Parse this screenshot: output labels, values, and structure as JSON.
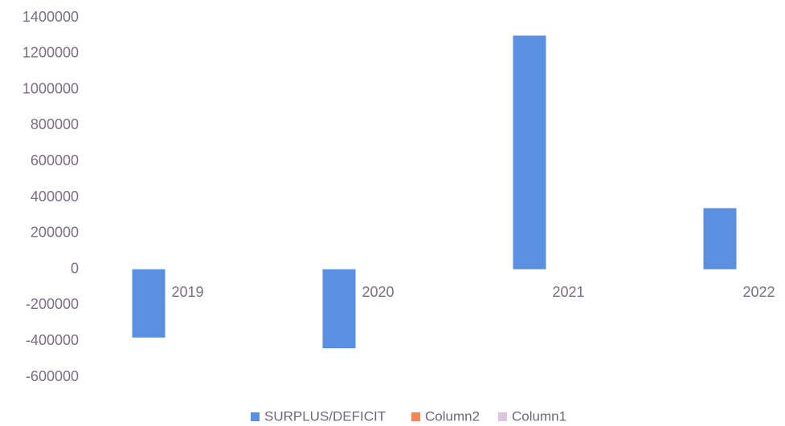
{
  "chart_data": {
    "type": "bar",
    "categories": [
      "2019",
      "2020",
      "2021",
      "2022"
    ],
    "series": [
      {
        "name": "SURPLUS/DEFICIT",
        "color": "#5b8fe0",
        "values": [
          -380000,
          -440000,
          1300000,
          340000
        ]
      },
      {
        "name": "Column2",
        "color": "#f0885a",
        "values": [
          null,
          null,
          null,
          null
        ]
      },
      {
        "name": "Column1",
        "color": "#dcc6de",
        "values": [
          null,
          null,
          null,
          null
        ]
      }
    ],
    "ylim": [
      -600000,
      1400000
    ],
    "yticks": [
      -600000,
      -400000,
      -200000,
      0,
      200000,
      400000,
      600000,
      800000,
      1000000,
      1200000,
      1400000
    ],
    "grid": false,
    "legend": "bottom"
  }
}
